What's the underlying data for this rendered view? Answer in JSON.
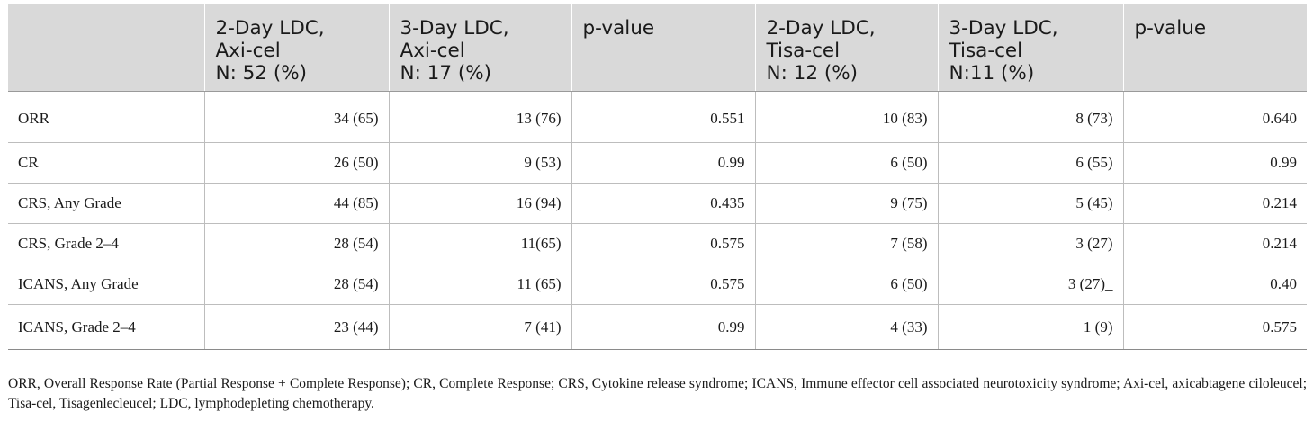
{
  "table": {
    "headers": [
      {
        "lines": [
          ""
        ]
      },
      {
        "lines": [
          "2-Day LDC,",
          "Axi-cel",
          "N: 52 (%)"
        ]
      },
      {
        "lines": [
          "3-Day LDC,",
          "Axi-cel",
          "N: 17 (%)"
        ]
      },
      {
        "lines": [
          "p-value"
        ]
      },
      {
        "lines": [
          "2-Day LDC,",
          "Tisa-cel",
          "N: 12 (%)"
        ]
      },
      {
        "lines": [
          "3-Day LDC,",
          "Tisa-cel",
          "N:11 (%)"
        ]
      },
      {
        "lines": [
          "p-value"
        ]
      }
    ],
    "rows": [
      [
        "ORR",
        "34 (65)",
        "13 (76)",
        "0.551",
        "10 (83)",
        "8 (73)",
        "0.640"
      ],
      [
        "CR",
        "26 (50)",
        "9 (53)",
        "0.99",
        "6 (50)",
        "6 (55)",
        "0.99"
      ],
      [
        "CRS, Any Grade",
        "44 (85)",
        "16 (94)",
        "0.435",
        "9 (75)",
        "5 (45)",
        "0.214"
      ],
      [
        "CRS, Grade 2–4",
        "28 (54)",
        "11(65)",
        "0.575",
        "7 (58)",
        "3 (27)",
        "0.214"
      ],
      [
        "ICANS, Any Grade",
        "28 (54)",
        "11 (65)",
        "0.575",
        "6 (50)",
        "3 (27)_",
        "0.40"
      ],
      [
        "ICANS, Grade 2–4",
        "23 (44)",
        "7 (41)",
        "0.99",
        "4 (33)",
        "1 (9)",
        "0.575"
      ]
    ]
  },
  "footnote": "ORR, Overall Response Rate (Partial Response + Complete Response); CR, Complete Response; CRS, Cytokine release syndrome; ICANS, Immune effector cell associated neurotoxicity syndrome; Axi-cel, axicabtagene ciloleucel; Tisa-cel, Tisagenlecleucel; LDC, lymphodepleting chemotherapy."
}
